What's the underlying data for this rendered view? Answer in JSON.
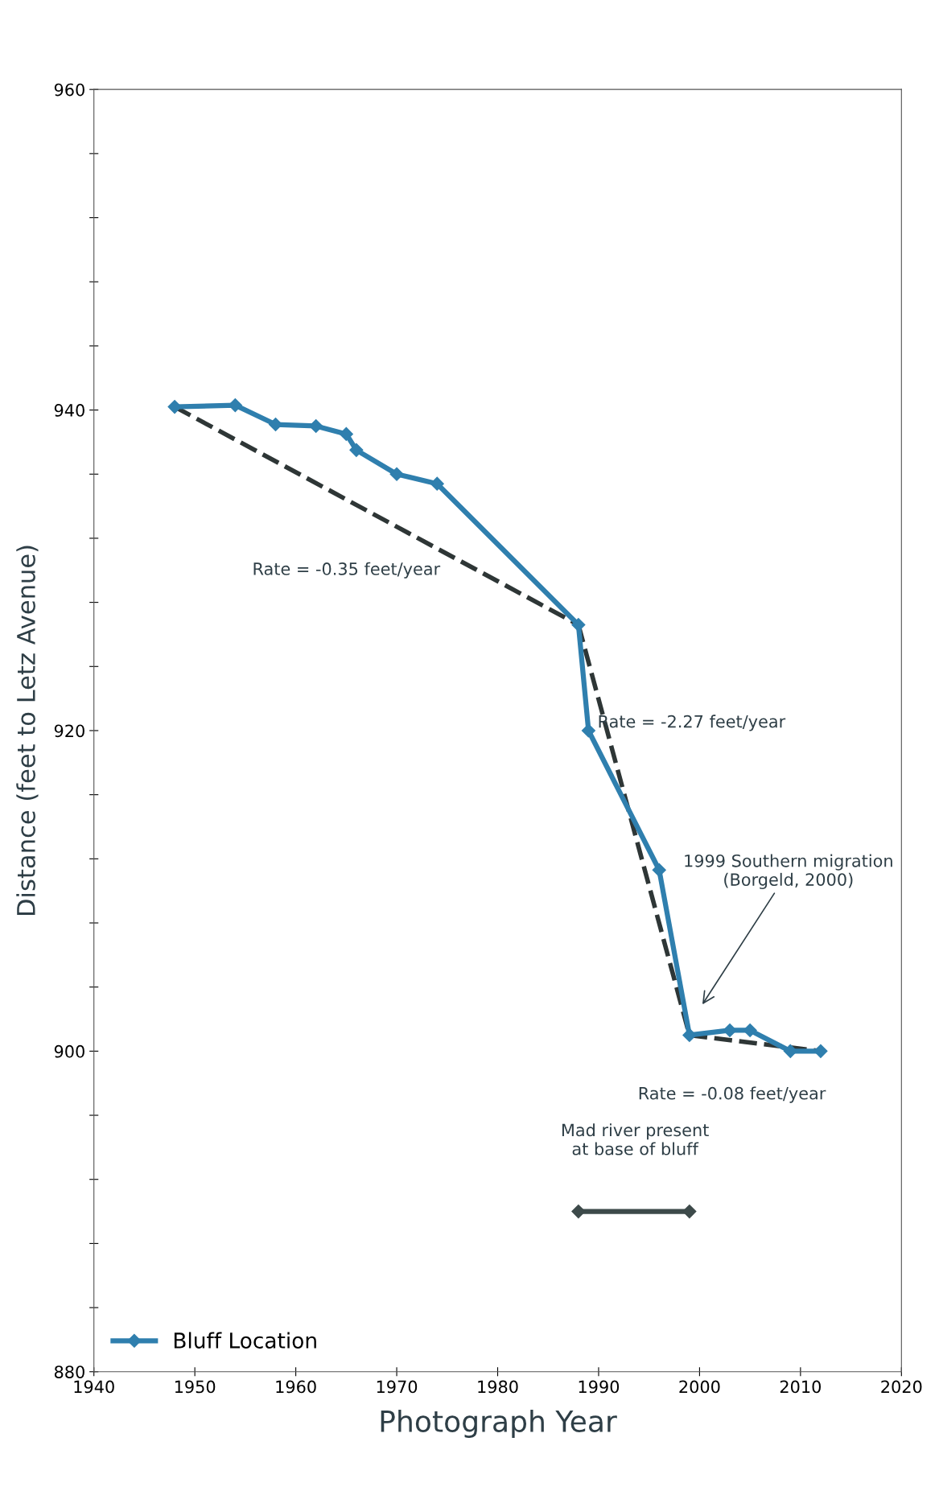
{
  "chart_data": {
    "type": "line",
    "xlabel": "Photograph Year",
    "ylabel": "Distance (feet to Letz Avenue)",
    "xlim": [
      1940,
      2020
    ],
    "xticks": [
      1940,
      1950,
      1960,
      1970,
      1980,
      1990,
      2000,
      2010,
      2020
    ],
    "ylim": [
      880,
      960
    ],
    "yticks": [
      880,
      {
        "value": 884,
        "label": null
      },
      {
        "value": 888,
        "label": null
      },
      {
        "value": 892,
        "label": null
      },
      {
        "value": 896,
        "label": null
      },
      900,
      {
        "value": 904,
        "label": null
      },
      {
        "value": 908,
        "label": null
      },
      {
        "value": 912,
        "label": null
      },
      {
        "value": 916,
        "label": null
      },
      920,
      {
        "value": 924,
        "label": null
      },
      {
        "value": 928,
        "label": null
      },
      {
        "value": 932,
        "label": null
      },
      {
        "value": 936,
        "label": null
      },
      940,
      {
        "value": 944,
        "label": null
      },
      {
        "value": 948,
        "label": null
      },
      {
        "value": 952,
        "label": null
      },
      {
        "value": 956,
        "label": null
      },
      960
    ],
    "grid": false,
    "legend": "bottom left",
    "series": [
      {
        "name": "Bluff Location",
        "color": "#2f7fae",
        "marker": "diamond",
        "line_style": "solid",
        "x": [
          1948,
          1954,
          1958,
          1962,
          1965,
          1966,
          1970,
          1974,
          1988,
          1989,
          1996,
          1999,
          2003,
          2005,
          2009,
          2012
        ],
        "values": [
          940.2,
          940.3,
          939.1,
          939.0,
          938.5,
          937.5,
          936.0,
          935.4,
          926.6,
          920.0,
          911.3,
          901.0,
          901.3,
          901.3,
          900.0,
          900.0
        ]
      },
      {
        "type": "line",
        "color": "#2e3636",
        "marker": "none",
        "line_style": "dashed",
        "x": [
          1948,
          1988
        ],
        "values": [
          940.2,
          926.6
        ]
      },
      {
        "type": "line",
        "color": "#2e3636",
        "marker": "none",
        "line_style": "dashed",
        "x": [
          1988,
          1999
        ],
        "values": [
          926.6,
          901.0
        ]
      },
      {
        "type": "line",
        "color": "#2e3636",
        "marker": "none",
        "line_style": "dashed",
        "x": [
          1999,
          2012
        ],
        "values": [
          901.0,
          900.0
        ]
      },
      {
        "type": "line",
        "color": "#3d4a4a",
        "marker": "diamond",
        "line_style": "solid",
        "x": [
          1988,
          1999
        ],
        "values": [
          890,
          890
        ]
      }
    ],
    "annotations": [
      "Rate = -0.35 feet/year",
      "Rate = -2.27 feet/year",
      "Rate = -0.08 feet/year",
      "1999 Southern migration\n(Borgeld, 2000)",
      "Mad river present\nat base of bluff"
    ]
  }
}
